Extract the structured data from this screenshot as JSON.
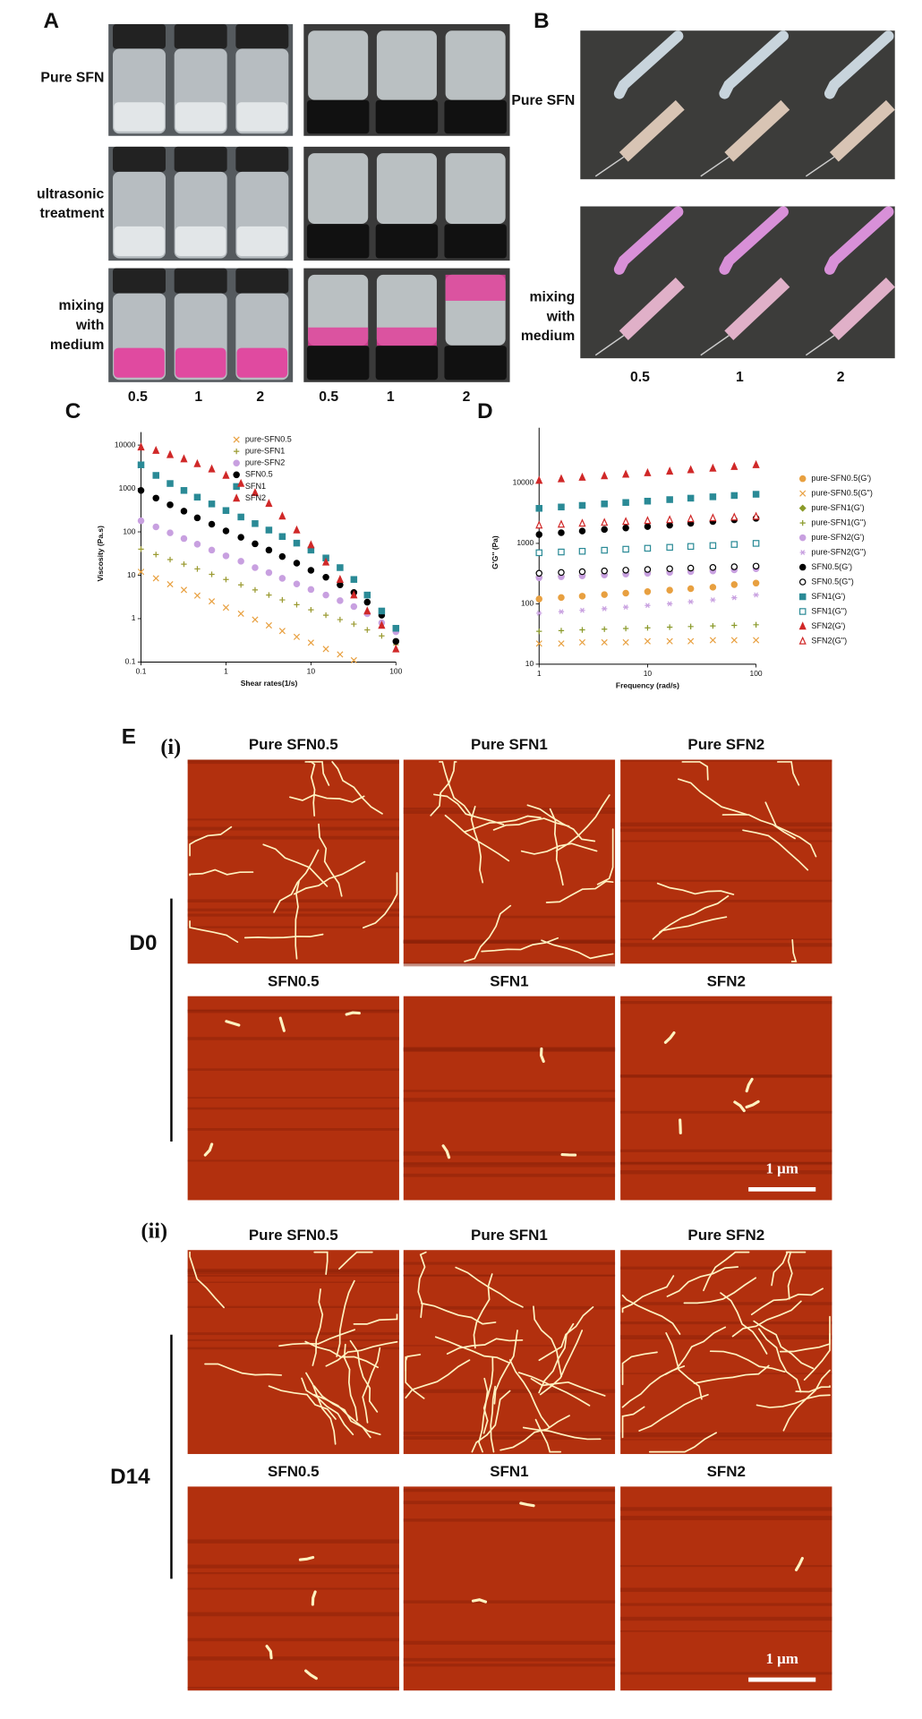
{
  "panels": {
    "A": {
      "label": "A",
      "rows": [
        [
          "Pure SFN"
        ],
        [
          "ultrasonic",
          "treatment"
        ],
        [
          "mixing",
          "with",
          "medium"
        ]
      ],
      "columns": [
        "0.5",
        "1",
        "2",
        "0.5",
        "1",
        "2"
      ]
    },
    "B": {
      "label": "B",
      "rows": [
        [
          "Pure SFN"
        ],
        [
          "mixing",
          "with",
          "medium"
        ]
      ],
      "columns": [
        "0.5",
        "1",
        "2"
      ]
    },
    "E": {
      "label": "E",
      "groups": [
        {
          "label": "(i)",
          "day": "D0",
          "titles": [
            "Pure SFN0.5",
            "Pure SFN1",
            "Pure SFN2",
            "SFN0.5",
            "SFN1",
            "SFN2"
          ],
          "scale_bar": "1 μm"
        },
        {
          "label": "(ii)",
          "day": "D14",
          "titles": [
            "Pure SFN0.5",
            "Pure SFN1",
            "Pure SFN2",
            "SFN0.5",
            "SFN1",
            "SFN2"
          ],
          "scale_bar": "1 μm"
        }
      ]
    }
  },
  "chart_data": [
    {
      "type": "scatter",
      "panel_label": "C",
      "x_label": "Shear rates(1/s)",
      "y_label": "Viscosity (Pa.s)",
      "xscale": "log",
      "yscale": "log",
      "xlim": [
        0.1,
        100
      ],
      "ylim": [
        0.1,
        10000
      ],
      "xticks": [
        0.1,
        1,
        10,
        100
      ],
      "yticks": [
        0.1,
        1,
        10,
        100,
        1000,
        10000
      ],
      "x": [
        0.1,
        0.15,
        0.22,
        0.32,
        0.46,
        0.68,
        1,
        1.5,
        2.2,
        3.2,
        4.6,
        6.8,
        10,
        15,
        22,
        32,
        46,
        68,
        100
      ],
      "series": [
        {
          "name": "pure-SFN0.5",
          "color": "#e8a040",
          "marker": "x",
          "filled": true,
          "values": [
            12,
            8.5,
            6.2,
            4.6,
            3.4,
            2.5,
            1.8,
            1.3,
            0.95,
            0.7,
            0.52,
            0.38,
            0.28,
            0.2,
            0.15,
            0.11,
            null,
            null,
            null
          ]
        },
        {
          "name": "pure-SFN1",
          "color": "#9a9a30",
          "marker": "plus",
          "filled": true,
          "values": [
            40,
            30,
            23,
            18,
            14,
            10.5,
            8,
            6,
            4.6,
            3.5,
            2.7,
            2.1,
            1.6,
            1.2,
            0.95,
            0.75,
            0.55,
            0.4,
            0.25
          ]
        },
        {
          "name": "pure-SFN2",
          "color": "#c8a0e0",
          "marker": "circle",
          "filled": true,
          "values": [
            180,
            130,
            95,
            70,
            52,
            38,
            28,
            21,
            15,
            11.5,
            8.5,
            6.3,
            4.7,
            3.5,
            2.6,
            1.9,
            1.3,
            0.8,
            0.5
          ]
        },
        {
          "name": "SFN0.5",
          "color": "#000000",
          "marker": "circle",
          "filled": true,
          "values": [
            900,
            600,
            420,
            300,
            210,
            150,
            105,
            75,
            53,
            38,
            27,
            19,
            13,
            9,
            6,
            4,
            2.4,
            1.2,
            0.3
          ]
        },
        {
          "name": "SFN1",
          "color": "#2a8a96",
          "marker": "square",
          "filled": true,
          "values": [
            3500,
            2000,
            1300,
            900,
            630,
            440,
            310,
            220,
            155,
            110,
            78,
            55,
            38,
            25,
            15,
            8,
            3.5,
            1.5,
            0.6
          ]
        },
        {
          "name": "SFN2",
          "color": "#d02828",
          "marker": "triangle",
          "filled": true,
          "values": [
            9000,
            7500,
            6000,
            4800,
            3700,
            2800,
            2000,
            1300,
            800,
            450,
            230,
            110,
            50,
            20,
            8,
            3.5,
            1.5,
            0.7,
            0.2
          ]
        }
      ]
    },
    {
      "type": "scatter",
      "panel_label": "D",
      "x_label": "Frequency (rad/s)",
      "y_label": "G'G'' (Pa)",
      "xscale": "log",
      "yscale": "log",
      "xlim": [
        1,
        100
      ],
      "ylim": [
        10,
        50000
      ],
      "xticks": [
        1,
        10,
        100
      ],
      "yticks": [
        10,
        100,
        1000,
        10000
      ],
      "x": [
        1,
        1.6,
        2.5,
        4,
        6.3,
        10,
        16,
        25,
        40,
        63,
        100
      ],
      "series": [
        {
          "name": "pure-SFN0.5(G')",
          "color": "#e8a040",
          "marker": "circle",
          "filled": true,
          "values": [
            120,
            127,
            134,
            142,
            150,
            159,
            168,
            178,
            188,
            208,
            220
          ]
        },
        {
          "name": "pure-SFN0.5(G'')",
          "color": "#e8a040",
          "marker": "x",
          "filled": true,
          "values": [
            22,
            22,
            23,
            23,
            23,
            24,
            24,
            24,
            25,
            25,
            25
          ]
        },
        {
          "name": "pure-SFN1(G')",
          "color": "#8a9a2a",
          "marker": "diamond",
          "filled": true,
          "values": [
            280,
            290,
            300,
            310,
            320,
            335,
            345,
            360,
            370,
            385,
            400
          ]
        },
        {
          "name": "pure-SFN1(G'')",
          "color": "#8a9a2a",
          "marker": "plus",
          "filled": true,
          "values": [
            35,
            36,
            37,
            38,
            39,
            40,
            41,
            42,
            43,
            44,
            45
          ]
        },
        {
          "name": "pure-SFN2(G')",
          "color": "#c8a0e0",
          "marker": "circle",
          "filled": true,
          "values": [
            270,
            280,
            290,
            300,
            310,
            320,
            330,
            340,
            350,
            365,
            380
          ]
        },
        {
          "name": "pure-SFN2(G'')",
          "color": "#c8a0e0",
          "marker": "star",
          "filled": true,
          "values": [
            70,
            74,
            78,
            83,
            88,
            94,
            100,
            108,
            116,
            126,
            140
          ]
        },
        {
          "name": "SFN0.5(G')",
          "color": "#000000",
          "marker": "circle",
          "filled": true,
          "values": [
            1400,
            1500,
            1600,
            1700,
            1800,
            1900,
            2000,
            2150,
            2300,
            2450,
            2600
          ]
        },
        {
          "name": "SFN0.5(G'')",
          "color": "#000000",
          "marker": "circle",
          "filled": false,
          "values": [
            320,
            330,
            340,
            350,
            360,
            370,
            380,
            390,
            400,
            410,
            420
          ]
        },
        {
          "name": "SFN1(G')",
          "color": "#2a8a96",
          "marker": "square",
          "filled": true,
          "values": [
            3800,
            4000,
            4250,
            4500,
            4750,
            5000,
            5300,
            5600,
            5900,
            6200,
            6500
          ]
        },
        {
          "name": "SFN1(G'')",
          "color": "#2a8a96",
          "marker": "square",
          "filled": false,
          "values": [
            700,
            720,
            740,
            770,
            800,
            830,
            860,
            890,
            920,
            960,
            1000
          ]
        },
        {
          "name": "SFN2(G')",
          "color": "#d02828",
          "marker": "triangle",
          "filled": true,
          "values": [
            11000,
            11700,
            12400,
            13100,
            13900,
            14700,
            15600,
            16500,
            17500,
            18700,
            20000
          ]
        },
        {
          "name": "SFN2(G'')",
          "color": "#d02828",
          "marker": "triangle",
          "filled": false,
          "values": [
            2000,
            2070,
            2150,
            2220,
            2300,
            2380,
            2460,
            2550,
            2640,
            2720,
            2800
          ]
        }
      ]
    }
  ]
}
